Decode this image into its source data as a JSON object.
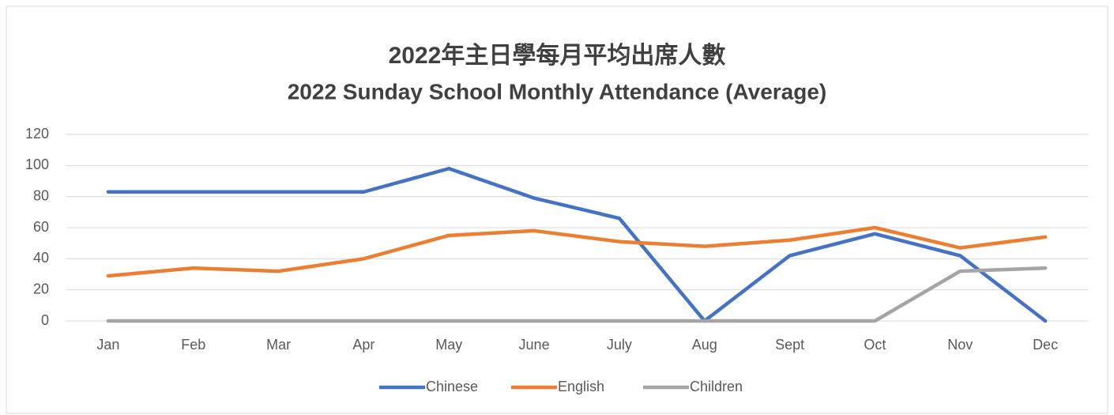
{
  "chart_data": {
    "type": "line",
    "title": "2022年主日學每月平均出席人數",
    "subtitle": "2022 Sunday School Monthly Attendance (Average)",
    "categories": [
      "Jan",
      "Feb",
      "Mar",
      "Apr",
      "May",
      "June",
      "July",
      "Aug",
      "Sept",
      "Oct",
      "Nov",
      "Dec"
    ],
    "series": [
      {
        "name": "Chinese",
        "color": "#4472c4",
        "values": [
          83,
          83,
          83,
          83,
          98,
          79,
          66,
          0,
          42,
          56,
          42,
          0
        ]
      },
      {
        "name": "English",
        "color": "#ed7d31",
        "values": [
          29,
          34,
          32,
          40,
          55,
          58,
          51,
          48,
          52,
          60,
          47,
          54
        ]
      },
      {
        "name": "Children",
        "color": "#a5a5a5",
        "values": [
          0,
          0,
          0,
          0,
          0,
          0,
          0,
          0,
          0,
          0,
          32,
          34
        ]
      }
    ],
    "ylim": [
      0,
      120
    ],
    "yticks": [
      0,
      20,
      40,
      60,
      80,
      100,
      120
    ],
    "grid": true,
    "legend": "bottom"
  }
}
